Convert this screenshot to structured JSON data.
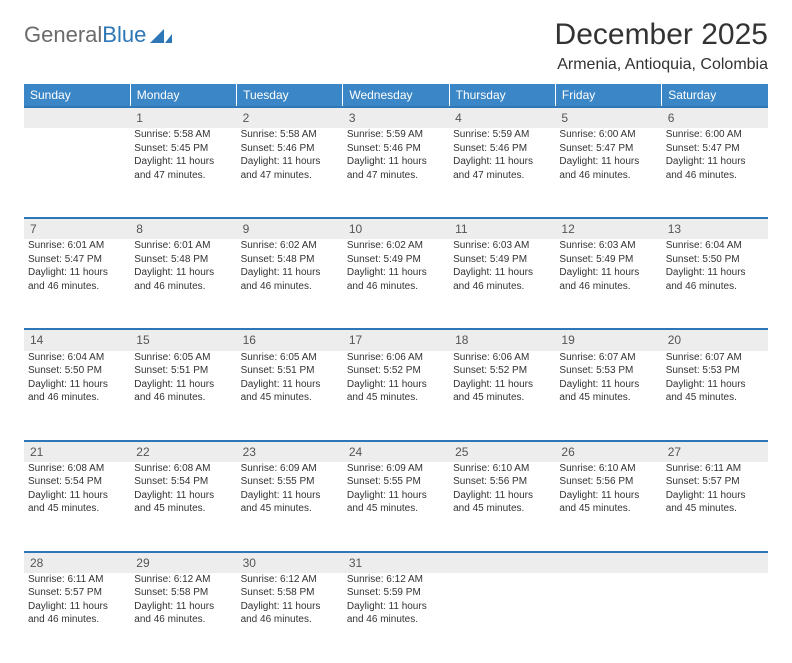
{
  "brand": {
    "text1": "General",
    "text2": "Blue",
    "color_gray": "#6b6b6b",
    "color_blue": "#2d77b6"
  },
  "title": "December 2025",
  "location": "Armenia, Antioquia, Colombia",
  "header_bg": "#3b86c6",
  "daynum_bg": "#ededed",
  "border_color": "#2d77b6",
  "weekdays": [
    "Sunday",
    "Monday",
    "Tuesday",
    "Wednesday",
    "Thursday",
    "Friday",
    "Saturday"
  ],
  "weeks": [
    [
      {
        "day": "",
        "lines": []
      },
      {
        "day": "1",
        "lines": [
          "Sunrise: 5:58 AM",
          "Sunset: 5:45 PM",
          "Daylight: 11 hours",
          "and 47 minutes."
        ]
      },
      {
        "day": "2",
        "lines": [
          "Sunrise: 5:58 AM",
          "Sunset: 5:46 PM",
          "Daylight: 11 hours",
          "and 47 minutes."
        ]
      },
      {
        "day": "3",
        "lines": [
          "Sunrise: 5:59 AM",
          "Sunset: 5:46 PM",
          "Daylight: 11 hours",
          "and 47 minutes."
        ]
      },
      {
        "day": "4",
        "lines": [
          "Sunrise: 5:59 AM",
          "Sunset: 5:46 PM",
          "Daylight: 11 hours",
          "and 47 minutes."
        ]
      },
      {
        "day": "5",
        "lines": [
          "Sunrise: 6:00 AM",
          "Sunset: 5:47 PM",
          "Daylight: 11 hours",
          "and 46 minutes."
        ]
      },
      {
        "day": "6",
        "lines": [
          "Sunrise: 6:00 AM",
          "Sunset: 5:47 PM",
          "Daylight: 11 hours",
          "and 46 minutes."
        ]
      }
    ],
    [
      {
        "day": "7",
        "lines": [
          "Sunrise: 6:01 AM",
          "Sunset: 5:47 PM",
          "Daylight: 11 hours",
          "and 46 minutes."
        ]
      },
      {
        "day": "8",
        "lines": [
          "Sunrise: 6:01 AM",
          "Sunset: 5:48 PM",
          "Daylight: 11 hours",
          "and 46 minutes."
        ]
      },
      {
        "day": "9",
        "lines": [
          "Sunrise: 6:02 AM",
          "Sunset: 5:48 PM",
          "Daylight: 11 hours",
          "and 46 minutes."
        ]
      },
      {
        "day": "10",
        "lines": [
          "Sunrise: 6:02 AM",
          "Sunset: 5:49 PM",
          "Daylight: 11 hours",
          "and 46 minutes."
        ]
      },
      {
        "day": "11",
        "lines": [
          "Sunrise: 6:03 AM",
          "Sunset: 5:49 PM",
          "Daylight: 11 hours",
          "and 46 minutes."
        ]
      },
      {
        "day": "12",
        "lines": [
          "Sunrise: 6:03 AM",
          "Sunset: 5:49 PM",
          "Daylight: 11 hours",
          "and 46 minutes."
        ]
      },
      {
        "day": "13",
        "lines": [
          "Sunrise: 6:04 AM",
          "Sunset: 5:50 PM",
          "Daylight: 11 hours",
          "and 46 minutes."
        ]
      }
    ],
    [
      {
        "day": "14",
        "lines": [
          "Sunrise: 6:04 AM",
          "Sunset: 5:50 PM",
          "Daylight: 11 hours",
          "and 46 minutes."
        ]
      },
      {
        "day": "15",
        "lines": [
          "Sunrise: 6:05 AM",
          "Sunset: 5:51 PM",
          "Daylight: 11 hours",
          "and 46 minutes."
        ]
      },
      {
        "day": "16",
        "lines": [
          "Sunrise: 6:05 AM",
          "Sunset: 5:51 PM",
          "Daylight: 11 hours",
          "and 45 minutes."
        ]
      },
      {
        "day": "17",
        "lines": [
          "Sunrise: 6:06 AM",
          "Sunset: 5:52 PM",
          "Daylight: 11 hours",
          "and 45 minutes."
        ]
      },
      {
        "day": "18",
        "lines": [
          "Sunrise: 6:06 AM",
          "Sunset: 5:52 PM",
          "Daylight: 11 hours",
          "and 45 minutes."
        ]
      },
      {
        "day": "19",
        "lines": [
          "Sunrise: 6:07 AM",
          "Sunset: 5:53 PM",
          "Daylight: 11 hours",
          "and 45 minutes."
        ]
      },
      {
        "day": "20",
        "lines": [
          "Sunrise: 6:07 AM",
          "Sunset: 5:53 PM",
          "Daylight: 11 hours",
          "and 45 minutes."
        ]
      }
    ],
    [
      {
        "day": "21",
        "lines": [
          "Sunrise: 6:08 AM",
          "Sunset: 5:54 PM",
          "Daylight: 11 hours",
          "and 45 minutes."
        ]
      },
      {
        "day": "22",
        "lines": [
          "Sunrise: 6:08 AM",
          "Sunset: 5:54 PM",
          "Daylight: 11 hours",
          "and 45 minutes."
        ]
      },
      {
        "day": "23",
        "lines": [
          "Sunrise: 6:09 AM",
          "Sunset: 5:55 PM",
          "Daylight: 11 hours",
          "and 45 minutes."
        ]
      },
      {
        "day": "24",
        "lines": [
          "Sunrise: 6:09 AM",
          "Sunset: 5:55 PM",
          "Daylight: 11 hours",
          "and 45 minutes."
        ]
      },
      {
        "day": "25",
        "lines": [
          "Sunrise: 6:10 AM",
          "Sunset: 5:56 PM",
          "Daylight: 11 hours",
          "and 45 minutes."
        ]
      },
      {
        "day": "26",
        "lines": [
          "Sunrise: 6:10 AM",
          "Sunset: 5:56 PM",
          "Daylight: 11 hours",
          "and 45 minutes."
        ]
      },
      {
        "day": "27",
        "lines": [
          "Sunrise: 6:11 AM",
          "Sunset: 5:57 PM",
          "Daylight: 11 hours",
          "and 45 minutes."
        ]
      }
    ],
    [
      {
        "day": "28",
        "lines": [
          "Sunrise: 6:11 AM",
          "Sunset: 5:57 PM",
          "Daylight: 11 hours",
          "and 46 minutes."
        ]
      },
      {
        "day": "29",
        "lines": [
          "Sunrise: 6:12 AM",
          "Sunset: 5:58 PM",
          "Daylight: 11 hours",
          "and 46 minutes."
        ]
      },
      {
        "day": "30",
        "lines": [
          "Sunrise: 6:12 AM",
          "Sunset: 5:58 PM",
          "Daylight: 11 hours",
          "and 46 minutes."
        ]
      },
      {
        "day": "31",
        "lines": [
          "Sunrise: 6:12 AM",
          "Sunset: 5:59 PM",
          "Daylight: 11 hours",
          "and 46 minutes."
        ]
      },
      {
        "day": "",
        "lines": []
      },
      {
        "day": "",
        "lines": []
      },
      {
        "day": "",
        "lines": []
      }
    ]
  ]
}
